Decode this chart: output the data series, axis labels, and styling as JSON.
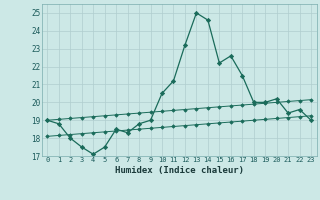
{
  "x": [
    0,
    1,
    2,
    3,
    4,
    5,
    6,
    7,
    8,
    9,
    10,
    11,
    12,
    13,
    14,
    15,
    16,
    17,
    18,
    19,
    20,
    21,
    22,
    23
  ],
  "y_main": [
    19.0,
    18.8,
    18.0,
    17.5,
    17.1,
    17.5,
    18.5,
    18.3,
    18.8,
    19.0,
    20.5,
    21.2,
    23.2,
    25.0,
    24.6,
    22.2,
    22.6,
    21.5,
    20.0,
    20.0,
    20.2,
    19.4,
    19.6,
    19.0
  ],
  "y_upper": [
    19.0,
    19.05,
    19.1,
    19.15,
    19.2,
    19.25,
    19.3,
    19.35,
    19.4,
    19.45,
    19.5,
    19.55,
    19.6,
    19.65,
    19.7,
    19.75,
    19.8,
    19.85,
    19.9,
    19.95,
    20.0,
    20.05,
    20.1,
    20.15
  ],
  "y_lower": [
    18.1,
    18.15,
    18.2,
    18.25,
    18.3,
    18.35,
    18.4,
    18.45,
    18.5,
    18.55,
    18.6,
    18.65,
    18.7,
    18.75,
    18.8,
    18.85,
    18.9,
    18.95,
    19.0,
    19.05,
    19.1,
    19.15,
    19.2,
    19.25
  ],
  "line_color": "#1a6b5a",
  "background_color": "#cce8e6",
  "grid_color": "#b0cece",
  "xlabel": "Humidex (Indice chaleur)",
  "ylim": [
    17,
    25.5
  ],
  "xlim": [
    -0.5,
    23.5
  ],
  "yticks": [
    17,
    18,
    19,
    20,
    21,
    22,
    23,
    24,
    25
  ],
  "xticks": [
    0,
    1,
    2,
    3,
    4,
    5,
    6,
    7,
    8,
    9,
    10,
    11,
    12,
    13,
    14,
    15,
    16,
    17,
    18,
    19,
    20,
    21,
    22,
    23
  ]
}
